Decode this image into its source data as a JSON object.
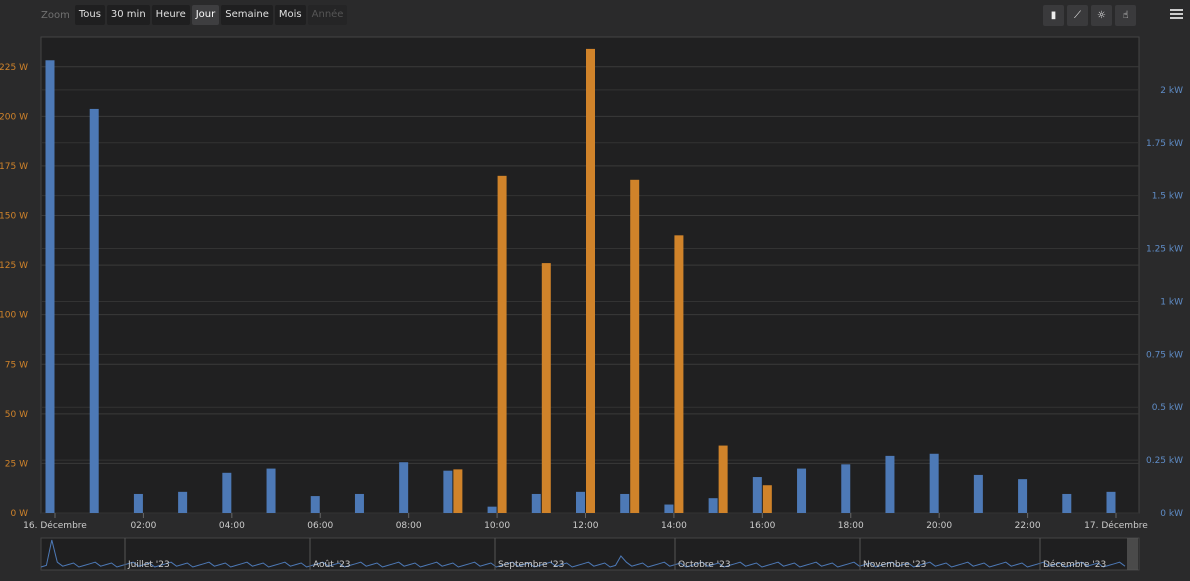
{
  "toolbar": {
    "zoom_label": "Zoom",
    "buttons": [
      "Tous",
      "30 min",
      "Heure",
      "Jour",
      "Semaine",
      "Mois",
      "Année"
    ],
    "active": "Jour",
    "disabled": "Année"
  },
  "colors": {
    "blue_series": "#4d79b6",
    "orange_series": "#d0832a",
    "background": "#2a2a2b",
    "plot_background": "#202021",
    "grid": "#3a3a3a",
    "left_axis_text": "#d0832a",
    "right_axis_text": "#5f8cc6"
  },
  "chart_data": {
    "type": "bar",
    "x_tick_labels": [
      "16. Décembre",
      "02:00",
      "04:00",
      "06:00",
      "08:00",
      "10:00",
      "12:00",
      "14:00",
      "16:00",
      "18:00",
      "20:00",
      "22:00",
      "17. Décembre"
    ],
    "x_range_hours": [
      0,
      24
    ],
    "left_axis": {
      "ticks": [
        "0 W",
        "25 W",
        "50 W",
        "75 W",
        "100 W",
        "125 W",
        "150 W",
        "175 W",
        "200 W",
        "225 W"
      ],
      "ylim": [
        0,
        240
      ],
      "unit": "W"
    },
    "right_axis": {
      "ticks": [
        "0 kW",
        "0.25 kW",
        "0.5 kW",
        "0.75 kW",
        "1 kW",
        "1.25 kW",
        "1.5 kW",
        "1.75 kW",
        "2 kW"
      ],
      "ylim": [
        0,
        2.25
      ],
      "unit": "kW"
    },
    "series": [
      {
        "axis": "right",
        "color": "#4d79b6",
        "unit": "kW",
        "hours": [
          0,
          1,
          2,
          3,
          4,
          5,
          6,
          7,
          8,
          9,
          10,
          11,
          12,
          13,
          14,
          15,
          16,
          17,
          18,
          19,
          20,
          21,
          22,
          23,
          24
        ],
        "values": [
          2.14,
          1.91,
          0.09,
          0.1,
          0.19,
          0.21,
          0.08,
          0.09,
          0.24,
          0.2,
          0.03,
          0.09,
          0.1,
          0.09,
          0.04,
          0.07,
          0.17,
          0.21,
          0.23,
          0.27,
          0.28,
          0.18,
          0.16,
          0.09,
          0.1
        ]
      },
      {
        "axis": "left",
        "color": "#d0832a",
        "unit": "W",
        "hours": [
          9,
          10,
          11,
          12,
          13,
          14,
          15,
          16
        ],
        "values": [
          22,
          170,
          126,
          234,
          168,
          140,
          34,
          14
        ]
      }
    ],
    "navigator": {
      "labels": [
        "Juillet '23",
        "Août '23",
        "Septembre '23",
        "Octobre '23",
        "Novembre '23",
        "Décembre '23"
      ]
    }
  }
}
